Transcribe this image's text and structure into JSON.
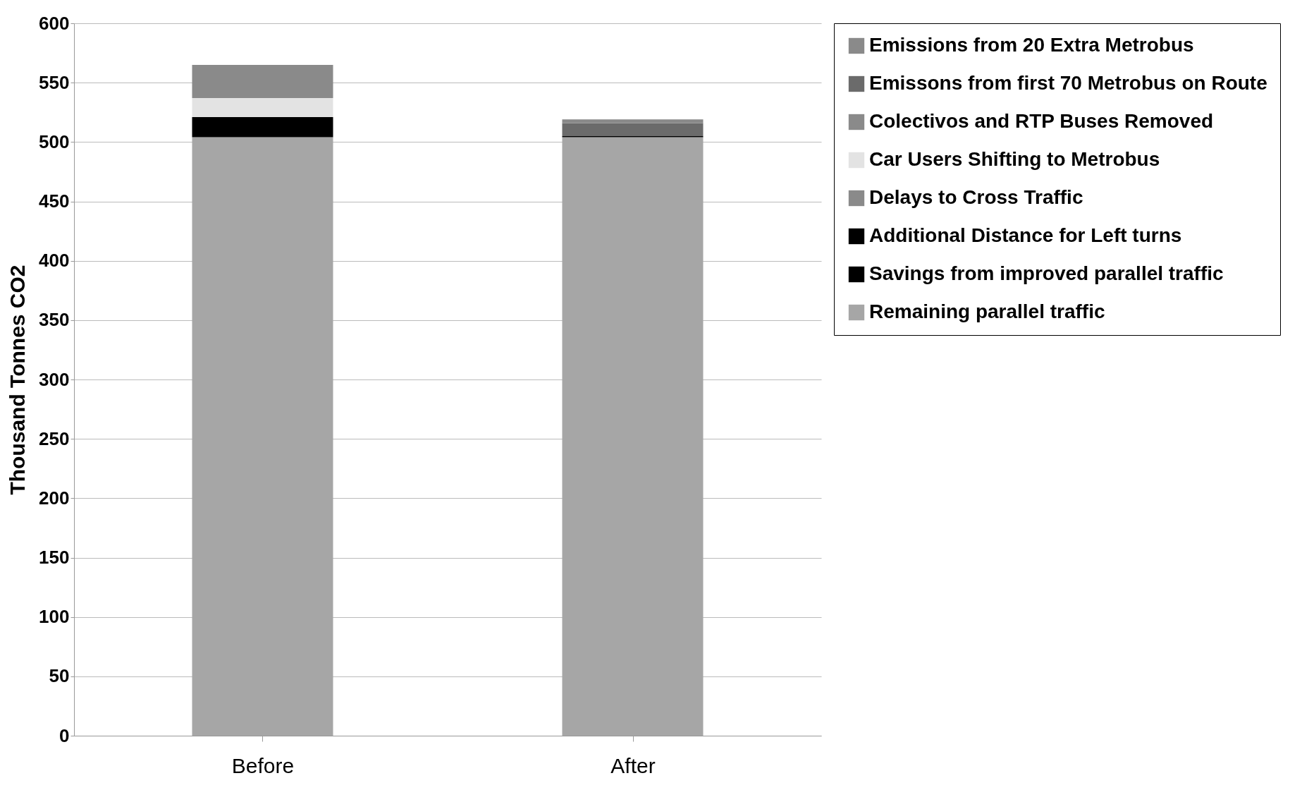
{
  "chart_data": {
    "type": "bar",
    "stacked": true,
    "ylabel": "Thousand Tonnes CO2",
    "categories": [
      "Before",
      "After"
    ],
    "ylim": [
      0,
      600
    ],
    "yticks": [
      0,
      50,
      100,
      150,
      200,
      250,
      300,
      350,
      400,
      450,
      500,
      550,
      600
    ],
    "grid": "y",
    "legend": "right",
    "series": [
      {
        "name": "Remaining parallel traffic",
        "color": "#a6a6a6",
        "values": [
          504,
          504
        ]
      },
      {
        "name": "Savings from improved parallel traffic",
        "color": "#000000",
        "values": [
          17,
          null
        ]
      },
      {
        "name": "Additional Distance for Left turns",
        "color": "#000000",
        "values": [
          null,
          1
        ]
      },
      {
        "name": "Delays to Cross Traffic",
        "color": "#8a8a8a",
        "values": [
          null,
          null
        ]
      },
      {
        "name": "Car Users Shifting to Metrobus",
        "color": "#e3e3e3",
        "values": [
          16,
          null
        ]
      },
      {
        "name": "Colectivos and RTP Buses Removed",
        "color": "#8a8a8a",
        "values": [
          28,
          null
        ]
      },
      {
        "name": "Emissons from first 70 Metrobus on Route",
        "color": "#6b6b6b",
        "values": [
          null,
          11
        ]
      },
      {
        "name": "Emissions from 20 Extra Metrobus",
        "color": "#8a8a8a",
        "values": [
          null,
          3
        ]
      }
    ]
  }
}
